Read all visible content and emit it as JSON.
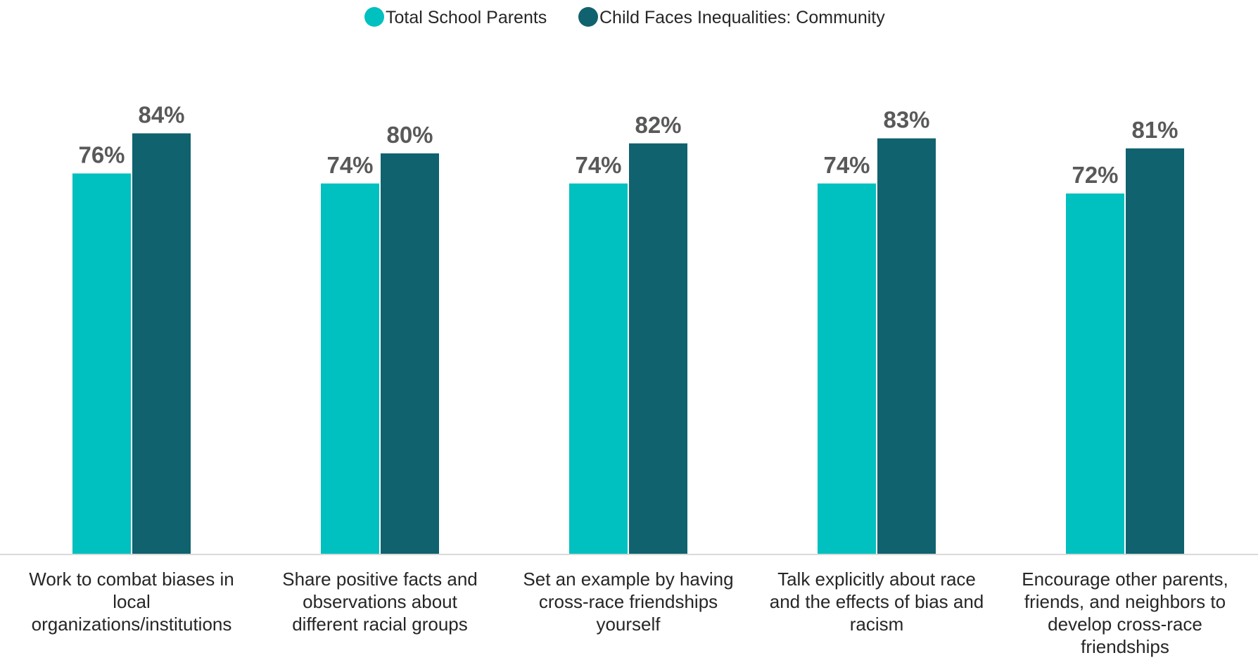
{
  "chart_data": {
    "type": "bar",
    "categories": [
      [
        "Work to combat biases in",
        "local",
        "organizations/institutions"
      ],
      [
        "Share positive facts and",
        "observations about",
        "different racial groups"
      ],
      [
        "Set an example by having",
        "cross-race friendships",
        "yourself"
      ],
      [
        "Talk explicitly about race",
        "and the effects of bias and",
        "racism"
      ],
      [
        "Encourage other parents,",
        "friends, and neighbors to",
        "develop cross-race",
        "friendships"
      ]
    ],
    "series": [
      {
        "name": "Total School Parents",
        "color": "#00C0C0",
        "values": [
          76,
          74,
          74,
          74,
          72
        ],
        "labels": [
          "76%",
          "74%",
          "74%",
          "74%",
          "72%"
        ]
      },
      {
        "name": "Child Faces Inequalities: Community",
        "color": "#10626E",
        "values": [
          84,
          80,
          82,
          83,
          81
        ],
        "labels": [
          "84%",
          "80%",
          "82%",
          "83%",
          "81%"
        ]
      }
    ],
    "ylim": [
      0,
      100
    ],
    "grid": false,
    "legend_position": "top-center"
  },
  "colors": {
    "axis_line": "#D9D9D9"
  }
}
